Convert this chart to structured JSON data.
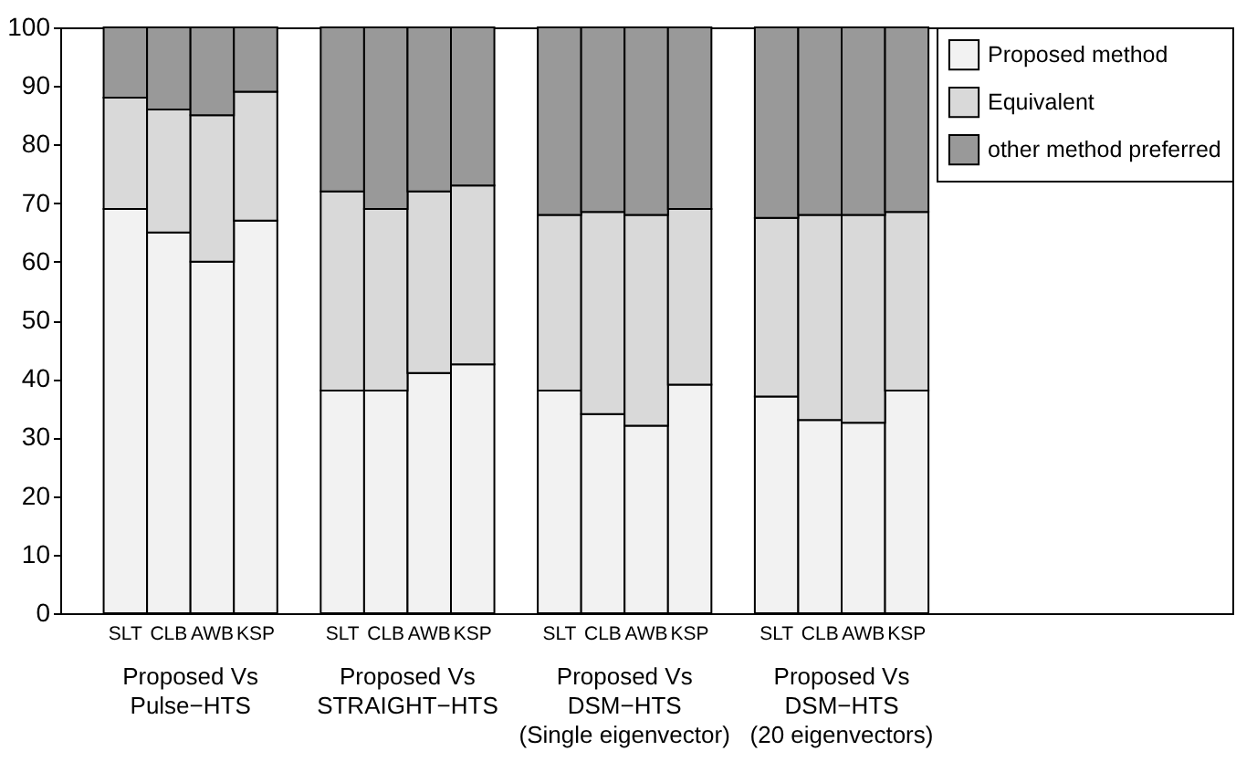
{
  "chart_data": {
    "type": "bar",
    "stacked": true,
    "categories": [
      null,
      "SLT",
      "CLB",
      "AWB",
      "KSP",
      null,
      "SLT",
      "CLB",
      "AWB",
      "KSP",
      null,
      "SLT",
      "CLB",
      "AWB",
      "KSP",
      null,
      "SLT",
      "CLB",
      "AWB",
      "KSP",
      null,
      null,
      null,
      null,
      null,
      null,
      null
    ],
    "series": [
      {
        "name": "Proposed method",
        "color": "#f2f2f2",
        "values": [
          null,
          69,
          65,
          60,
          67,
          null,
          38,
          38,
          41,
          42.5,
          null,
          38,
          34,
          32,
          39,
          null,
          37,
          33,
          32.5,
          38,
          null,
          null,
          null,
          null,
          null,
          null,
          null
        ]
      },
      {
        "name": "Equivalent",
        "color": "#d9d9d9",
        "values": [
          null,
          19,
          21,
          25,
          22,
          null,
          34,
          31,
          31,
          30.5,
          null,
          30,
          34.5,
          36,
          30,
          null,
          30.5,
          35,
          35.5,
          30.5,
          null,
          null,
          null,
          null,
          null,
          null,
          null
        ]
      },
      {
        "name": "other method preferred",
        "color": "#999999",
        "values": [
          null,
          12,
          14,
          15,
          11,
          null,
          28,
          31,
          28,
          27,
          null,
          32,
          31.5,
          32,
          31,
          null,
          32.5,
          32,
          32,
          31.5,
          null,
          null,
          null,
          null,
          null,
          null,
          null
        ]
      }
    ],
    "ylim": [
      0,
      100
    ],
    "yticks": [
      0,
      10,
      20,
      30,
      40,
      50,
      60,
      70,
      80,
      90,
      100
    ],
    "legend": "top right",
    "annotations": [
      "Proposed Vs\nPulse−HTS",
      "Proposed Vs\nSTRAIGHT−HTS",
      "Proposed Vs\nDSM−HTS\n(Single eigenvector)",
      "Proposed Vs\nDSM−HTS\n(20 eigenvectors)"
    ]
  }
}
